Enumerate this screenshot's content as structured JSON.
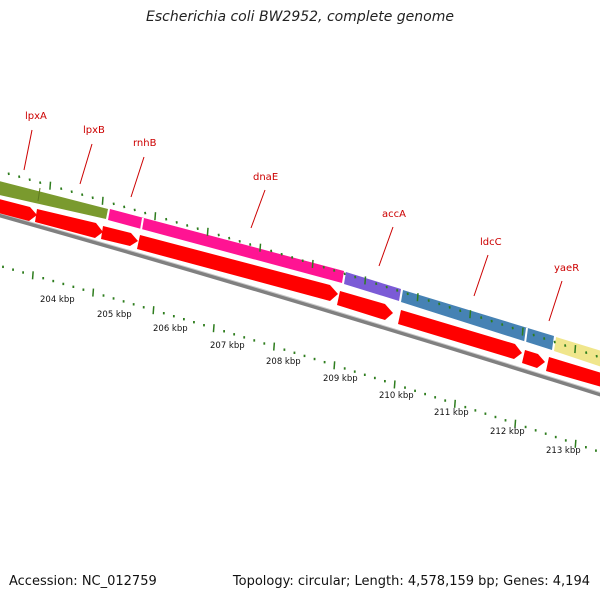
{
  "title": "Escherichia coli BW2952, complete genome",
  "footer": {
    "accession": "Accession: NC_012759",
    "summary": "Topology: circular; Length: 4,578,159 bp; Genes: 4,194"
  },
  "colors": {
    "olive": "#7a9a2e",
    "magenta": "#ff1493",
    "purple": "#7b5bd6",
    "steelblue": "#4682b4",
    "khaki": "#f0e68c",
    "cds": "#ff0000",
    "backbone": "#808080",
    "tick": "#2e7d1e",
    "label": "#cc0000"
  },
  "genes": [
    {
      "name": "lpxA"
    },
    {
      "name": "lpxB"
    },
    {
      "name": "rnhB"
    },
    {
      "name": "dnaE"
    },
    {
      "name": "accA"
    },
    {
      "name": "ldcC"
    },
    {
      "name": "yaeR"
    }
  ],
  "scale_labels": [
    "204 kbp",
    "205 kbp",
    "206 kbp",
    "207 kbp",
    "208 kbp",
    "209 kbp",
    "210 kbp",
    "211 kbp",
    "212 kbp",
    "213 kbp"
  ]
}
